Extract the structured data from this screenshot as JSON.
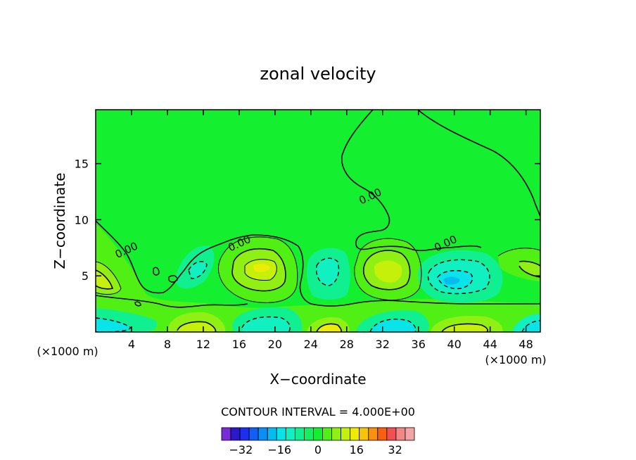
{
  "chart_data": {
    "type": "contour",
    "title": "zonal velocity",
    "xlabel": "X−coordinate",
    "ylabel": "Z−coordinate",
    "x_unit": "(×1000 m)",
    "y_unit": "(×1000 m)",
    "xlim": [
      0,
      49.6
    ],
    "ylim": [
      0,
      19.8
    ],
    "x_ticks": [
      4,
      8,
      12,
      16,
      20,
      24,
      28,
      32,
      36,
      40,
      44,
      48
    ],
    "y_ticks": [
      5,
      10,
      15
    ],
    "contour_interval_text": "CONTOUR INTERVAL = 4.000E+00",
    "contour_labels": [
      {
        "text": "0.00",
        "x": 3.6,
        "y": 7.0
      },
      {
        "text": "0.00",
        "x": 16.2,
        "y": 7.6
      },
      {
        "text": "0.00",
        "x": 30.8,
        "y": 11.8
      },
      {
        "text": "0.00",
        "x": 39.2,
        "y": 7.6
      }
    ],
    "colorbar": {
      "tick_labels": [
        "−32",
        "−16",
        "0",
        "16",
        "32"
      ],
      "tick_values": [
        -32,
        -16,
        0,
        16,
        32
      ],
      "levels": [
        -40,
        -36,
        -32,
        -28,
        -24,
        -20,
        -16,
        -12,
        -8,
        -4,
        0,
        4,
        8,
        12,
        16,
        20,
        24,
        28,
        32,
        36,
        40
      ],
      "colors": [
        "#7a2bd8",
        "#2b18c8",
        "#1c2ef0",
        "#1060f8",
        "#0a90f4",
        "#04bcf0",
        "#08e4e8",
        "#10f0c0",
        "#10f090",
        "#14f060",
        "#14f030",
        "#50f014",
        "#90f014",
        "#c4f00a",
        "#ecec08",
        "#f8c408",
        "#f89010",
        "#f86010",
        "#f05050",
        "#f08888",
        "#f4a4a4"
      ]
    },
    "regions": [
      {
        "label": "background",
        "value": 0
      },
      {
        "label": "jet core near x=18.5, z=5.8",
        "value": 14
      },
      {
        "label": "jet core near x=32.5, z=5.5",
        "value": 10
      },
      {
        "label": "jet near surface at x=26",
        "value": 12
      },
      {
        "label": "negative core near x=39.5, z=4.5",
        "value": -14
      },
      {
        "label": "negative core near x=19.5, z=1.2",
        "value": -6
      },
      {
        "label": "negative core near x=26.5, z=5",
        "value": -6
      },
      {
        "label": "negative core at x=0, z=0.5",
        "value": -10
      }
    ]
  }
}
